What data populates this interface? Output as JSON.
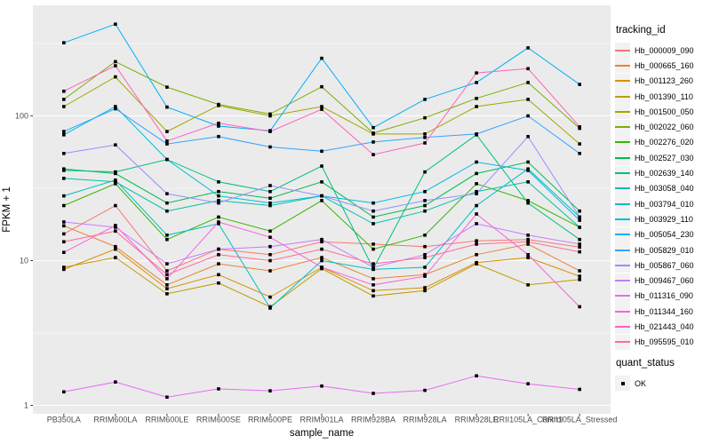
{
  "axes": {
    "x_title": "sample_name",
    "y_title": "FPKM + 1",
    "y_tick_labels": [
      "1",
      "10",
      "100"
    ],
    "tick_color": "#333333",
    "tick_label_color": "#4D4D4D"
  },
  "legend": {
    "tracking_title": "tracking_id",
    "quant_title": "quant_status",
    "quant_items": [
      {
        "label": "OK",
        "marker": "black-square"
      }
    ]
  },
  "panel": {
    "background": "#EBEBEB",
    "grid_color": "#FFFFFF",
    "outer_background": "#FFFFFF"
  },
  "chart_data": {
    "type": "line",
    "title": "",
    "xlabel": "sample_name",
    "ylabel": "FPKM + 1",
    "yscale": "log10",
    "ylim": [
      0.9,
      580
    ],
    "y_major": [
      1,
      10,
      100
    ],
    "y_minor": [
      3.162,
      31.62,
      316.2
    ],
    "grid": "white major+minor on grey panel",
    "legend_position": "right",
    "marker": "filled-black-square",
    "x": [
      "PB350LA",
      "RRIM600LA",
      "RRIM600LE",
      "RRIM600SE",
      "RRIM600PE",
      "RRIM901LA",
      "RRIM928BA",
      "RRIM928LA",
      "RRIM928LE",
      "RRII105LA_Control",
      "RRII105LA_Stressed"
    ],
    "series": [
      {
        "name": "Hb_000009_090",
        "color": "#F8766D",
        "values": [
          15.3,
          24,
          8.5,
          12,
          11,
          13.5,
          13,
          12.5,
          13.7,
          14,
          12.4
        ]
      },
      {
        "name": "Hb_000665_160",
        "color": "#EA8331",
        "values": [
          17.4,
          12.5,
          6.8,
          9.5,
          8.5,
          10.5,
          7.5,
          8.0,
          11,
          13,
          8.5
        ]
      },
      {
        "name": "Hb_001123_260",
        "color": "#D89000",
        "values": [
          8.7,
          12,
          6.4,
          8.0,
          5.6,
          9.0,
          6.2,
          6.5,
          9.7,
          10.5,
          7.8
        ]
      },
      {
        "name": "Hb_001390_110",
        "color": "#C09B00",
        "values": [
          9.0,
          10.5,
          5.9,
          7.0,
          4.8,
          8.8,
          5.7,
          6.2,
          9.5,
          6.8,
          7.4
        ]
      },
      {
        "name": "Hb_001500_050",
        "color": "#A3A500",
        "values": [
          116,
          186,
          78,
          118,
          100,
          116,
          75,
          75,
          116,
          130,
          64
        ]
      },
      {
        "name": "Hb_002022_060",
        "color": "#7CAE00",
        "values": [
          130,
          237,
          158,
          120,
          103,
          159,
          76,
          97,
          132,
          170,
          82
        ]
      },
      {
        "name": "Hb_002276_020",
        "color": "#39B600",
        "values": [
          24,
          34,
          14,
          20,
          16,
          26,
          12,
          15,
          34,
          26,
          17
        ]
      },
      {
        "name": "Hb_002527_030",
        "color": "#00BB4E",
        "values": [
          43,
          40,
          25,
          30,
          27,
          35,
          20,
          24,
          40,
          48,
          22
        ]
      },
      {
        "name": "Hb_002639_140",
        "color": "#00BF7D",
        "values": [
          42,
          41,
          50,
          35,
          30,
          45,
          8.8,
          41,
          74,
          25,
          14
        ]
      },
      {
        "name": "Hb_003058_040",
        "color": "#00C1A3",
        "values": [
          37,
          35,
          22,
          26,
          24,
          28,
          18,
          22,
          30,
          35,
          17
        ]
      },
      {
        "name": "Hb_003794_010",
        "color": "#00BFC4",
        "values": [
          28,
          36,
          15,
          18,
          4.7,
          10,
          8.7,
          9.0,
          24,
          43,
          20
        ]
      },
      {
        "name": "Hb_003929_110",
        "color": "#00BAE0",
        "values": [
          74,
          116,
          50,
          28,
          25,
          28,
          25,
          30,
          48,
          42,
          19
        ]
      },
      {
        "name": "Hb_005054_230",
        "color": "#00B0F6",
        "values": [
          320,
          430,
          115,
          85,
          79,
          250,
          83,
          130,
          170,
          295,
          165
        ]
      },
      {
        "name": "Hb_005829_010",
        "color": "#35A2FF",
        "values": [
          78,
          112,
          64,
          72,
          61,
          57,
          66,
          71,
          75,
          100,
          55
        ]
      },
      {
        "name": "Hb_005867_060",
        "color": "#9590FF",
        "values": [
          55,
          63,
          29,
          25,
          33,
          28,
          22,
          26,
          29,
          72,
          20
        ]
      },
      {
        "name": "Hb_009467_060",
        "color": "#C77CFF",
        "values": [
          18.5,
          17,
          9.5,
          12,
          12.5,
          14,
          9,
          11,
          18,
          15,
          13
        ]
      },
      {
        "name": "Hb_011316_090",
        "color": "#E76BF3",
        "values": [
          1.24,
          1.45,
          1.14,
          1.3,
          1.26,
          1.36,
          1.21,
          1.27,
          1.6,
          1.41,
          1.29
        ]
      },
      {
        "name": "Hb_011344_160",
        "color": "#FA62DB",
        "values": [
          11.4,
          17.5,
          7.5,
          18.5,
          14.5,
          9.0,
          6.8,
          7.8,
          21,
          11,
          4.8
        ]
      },
      {
        "name": "Hb_021443_040",
        "color": "#FF62BC",
        "values": [
          148,
          222,
          67,
          89,
          78,
          111,
          54,
          65,
          198,
          212,
          84
        ]
      },
      {
        "name": "Hb_095595_010",
        "color": "#FF6A98",
        "values": [
          13.5,
          16,
          8,
          11,
          10,
          12,
          9.5,
          10.5,
          13,
          13.5,
          11.5
        ]
      }
    ]
  }
}
